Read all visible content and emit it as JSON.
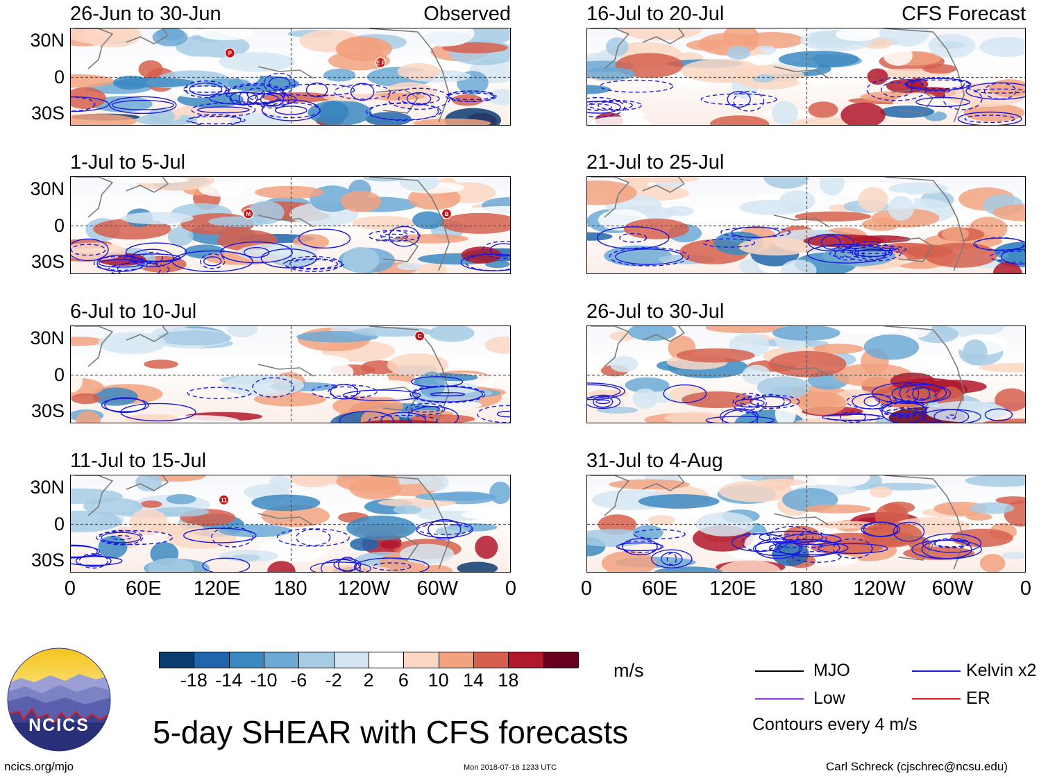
{
  "chart_data": {
    "type": "heatmap",
    "title": "5-day SHEAR with CFS forecasts",
    "variable": "SHEAR",
    "units": "m/s",
    "lat_ticks": [
      "30N",
      "0",
      "30S"
    ],
    "lon_ticks": [
      "0",
      "60E",
      "120E",
      "180",
      "120W",
      "60W",
      "0"
    ],
    "lat_range": [
      -40,
      40
    ],
    "lon_range": [
      0,
      360
    ],
    "panels": [
      {
        "period": "26-Jun to 30-Jun",
        "tag": "Observed",
        "storms": [
          {
            "label": "P",
            "lon": 130,
            "lat": 20
          },
          {
            "label": "E F",
            "lon": 253,
            "lat": 12
          }
        ]
      },
      {
        "period": "1-Jul to 5-Jul",
        "tag": "",
        "storms": [
          {
            "label": "M",
            "lon": 145,
            "lat": 10
          },
          {
            "label": "B",
            "lon": 307,
            "lat": 10
          }
        ]
      },
      {
        "period": "6-Jul to 10-Jul",
        "tag": "",
        "storms": [
          {
            "label": "C",
            "lon": 285,
            "lat": 32
          }
        ]
      },
      {
        "period": "11-Jul to 15-Jul",
        "tag": "",
        "storms": [
          {
            "label": "11",
            "lon": 125,
            "lat": 20
          }
        ]
      },
      {
        "period": "16-Jul to 20-Jul",
        "tag": "CFS Forecast",
        "storms": []
      },
      {
        "period": "21-Jul to 25-Jul",
        "tag": "",
        "storms": []
      },
      {
        "period": "26-Jul to 30-Jul",
        "tag": "",
        "storms": []
      },
      {
        "period": "31-Jul to 4-Aug",
        "tag": "",
        "storms": []
      }
    ],
    "colorbar": {
      "levels": [
        "-18",
        "-14",
        "-10",
        "-6",
        "-2",
        "2",
        "6",
        "10",
        "14",
        "18"
      ],
      "colors": [
        "#0b3c6e",
        "#2166ac",
        "#3c89c2",
        "#6ca9d5",
        "#a6cbe4",
        "#d5e6f2",
        "#ffffff",
        "#fcd7c3",
        "#f2a27f",
        "#d6604d",
        "#b2182b",
        "#67001f"
      ],
      "units": "m/s"
    },
    "legend": [
      {
        "label": "MJO",
        "color": "#000000"
      },
      {
        "label": "Kelvin x2",
        "color": "#1818e0"
      },
      {
        "label": "Low",
        "color": "#9933dd"
      },
      {
        "label": "ER",
        "color": "#e02020"
      }
    ],
    "contour_note": "Contours every 4 m/s"
  },
  "logo_text": "NCICS",
  "footer": {
    "left": "ncics.org/mjo",
    "center": "Mon 2018-07-16 1233 UTC",
    "right": "Carl Schreck (cjschrec@ncsu.edu)"
  }
}
